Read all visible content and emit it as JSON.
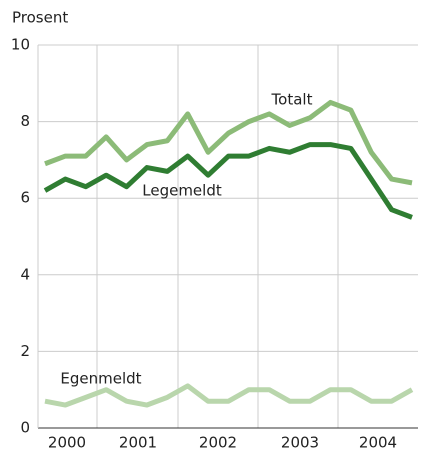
{
  "chart_data": {
    "type": "line",
    "y_label": "Prosent",
    "year_labels": [
      "2000",
      "2001",
      "2002",
      "2003",
      "2004"
    ],
    "categories": [
      null,
      null,
      null,
      null,
      null,
      null,
      null,
      null,
      null,
      null,
      null,
      null,
      null,
      null,
      null,
      null,
      null,
      null,
      null
    ],
    "series": [
      {
        "name": "Totalt",
        "color": "#8cbb78",
        "values": [
          6.9,
          7.1,
          7.1,
          7.6,
          7.0,
          7.4,
          7.5,
          8.2,
          7.2,
          7.7,
          8.0,
          8.2,
          7.9,
          8.1,
          8.5,
          8.3,
          7.2,
          6.5,
          6.4
        ]
      },
      {
        "name": "Legemeldt",
        "color": "#2f7d32",
        "values": [
          6.2,
          6.5,
          6.3,
          6.6,
          6.3,
          6.8,
          6.7,
          7.1,
          6.6,
          7.1,
          7.1,
          7.3,
          7.2,
          7.4,
          7.4,
          7.3,
          6.5,
          5.7,
          5.5
        ]
      },
      {
        "name": "Egenmeldt",
        "color": "#b9d6ac",
        "values": [
          0.7,
          0.6,
          0.8,
          1.0,
          0.7,
          0.6,
          0.8,
          1.1,
          0.7,
          0.7,
          1.0,
          1.0,
          0.7,
          0.7,
          1.0,
          1.0,
          0.7,
          0.7,
          1.0
        ]
      }
    ],
    "ylim": [
      0,
      10
    ],
    "yticks": [
      0,
      2,
      4,
      6,
      8,
      10
    ],
    "grid": true
  }
}
